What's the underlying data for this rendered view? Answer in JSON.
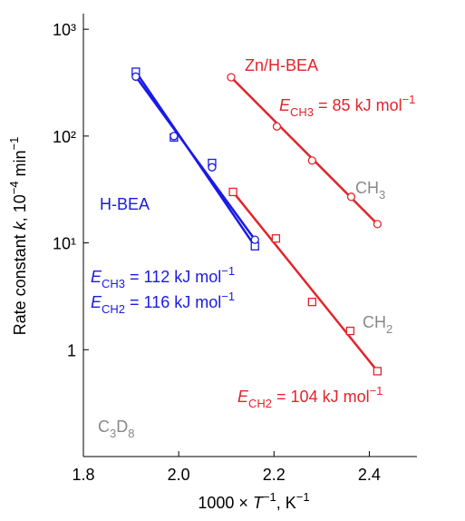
{
  "chart_data": {
    "type": "scatter",
    "xlabel": [
      {
        "t": "1000"
      },
      {
        "t": " × "
      },
      {
        "t": "T",
        "f": "i"
      },
      {
        "t": "−1",
        "f": "sup"
      },
      {
        "t": ", K"
      },
      {
        "t": "−1",
        "f": "sup"
      }
    ],
    "ylabel": [
      {
        "t": "Rate constant "
      },
      {
        "t": "k",
        "f": "i"
      },
      {
        "t": ", 10"
      },
      {
        "t": "−4",
        "f": "sup"
      },
      {
        "t": " min"
      },
      {
        "t": "−1",
        "f": "sup"
      }
    ],
    "xlim": [
      1.8,
      2.5
    ],
    "xticks": [
      1.8,
      {
        "value": 2,
        "label": "2.0"
      },
      2.2,
      2.4
    ],
    "ylim": [
      0.1,
      1400
    ],
    "log_y": true,
    "yticks": [
      1,
      {
        "value": 10,
        "label": "10¹"
      },
      {
        "value": 100,
        "label": "10²"
      },
      {
        "value": 1000,
        "label": "10³"
      }
    ],
    "series": [
      {
        "color": "#e3242b",
        "marker": "circle",
        "fit": true,
        "x": [
          2.11,
          2.206,
          2.28,
          2.362,
          2.417
        ],
        "values": [
          355,
          123,
          59,
          27,
          15
        ]
      },
      {
        "color": "#e3242b",
        "marker": "square",
        "fit": true,
        "x": [
          2.114,
          2.204,
          2.28,
          2.36,
          2.417
        ],
        "values": [
          30,
          11,
          2.8,
          1.5,
          0.63
        ]
      },
      {
        "color": "#1a1ae6",
        "marker": "square",
        "fit": true,
        "x": [
          1.91,
          1.99,
          2.07,
          2.16
        ],
        "values": [
          400,
          97,
          56,
          9.3
        ]
      },
      {
        "color": "#1a1ae6",
        "marker": "circle",
        "fit": true,
        "x": [
          1.91,
          1.99,
          2.07,
          2.16
        ],
        "values": [
          360,
          100,
          51,
          10.7
        ]
      }
    ],
    "annotations": [
      {
        "color": "#e3242b",
        "parts": [
          {
            "t": "Zn/H-BEA"
          }
        ]
      },
      {
        "color": "#e3242b",
        "parts": [
          {
            "t": "E",
            "f": "i"
          },
          {
            "t": "CH",
            "f": "sub"
          },
          {
            "t": "3",
            "f": "sub2"
          },
          {
            "t": " = 85 kJ mol"
          },
          {
            "t": "−1",
            "f": "sup"
          }
        ]
      },
      {
        "color": "#888888",
        "parts": [
          {
            "t": "CH"
          },
          {
            "t": "3",
            "f": "sub"
          }
        ]
      },
      {
        "color": "#1a1ae6",
        "parts": [
          {
            "t": "H-BEA"
          }
        ]
      },
      {
        "color": "#1a1ae6",
        "parts": [
          {
            "t": "E",
            "f": "i"
          },
          {
            "t": "CH",
            "f": "sub"
          },
          {
            "t": "3",
            "f": "sub2"
          },
          {
            "t": " = 112 kJ mol"
          },
          {
            "t": "−1",
            "f": "sup"
          }
        ]
      },
      {
        "color": "#1a1ae6",
        "parts": [
          {
            "t": "E",
            "f": "i"
          },
          {
            "t": "CH",
            "f": "sub"
          },
          {
            "t": "2",
            "f": "sub2"
          },
          {
            "t": " = 116 kJ mol"
          },
          {
            "t": "−1",
            "f": "sup"
          }
        ]
      },
      {
        "color": "#888888",
        "parts": [
          {
            "t": "CH"
          },
          {
            "t": "2",
            "f": "sub"
          }
        ]
      },
      {
        "color": "#e3242b",
        "parts": [
          {
            "t": "E",
            "f": "i"
          },
          {
            "t": "CH",
            "f": "sub"
          },
          {
            "t": "2",
            "f": "sub2"
          },
          {
            "t": " = 104 kJ mol"
          },
          {
            "t": "−1",
            "f": "sup"
          }
        ]
      },
      {
        "color": "#888888",
        "parts": [
          {
            "t": "C"
          },
          {
            "t": "3",
            "f": "sub"
          },
          {
            "t": "D"
          },
          {
            "t": "8",
            "f": "sub"
          }
        ]
      }
    ]
  }
}
